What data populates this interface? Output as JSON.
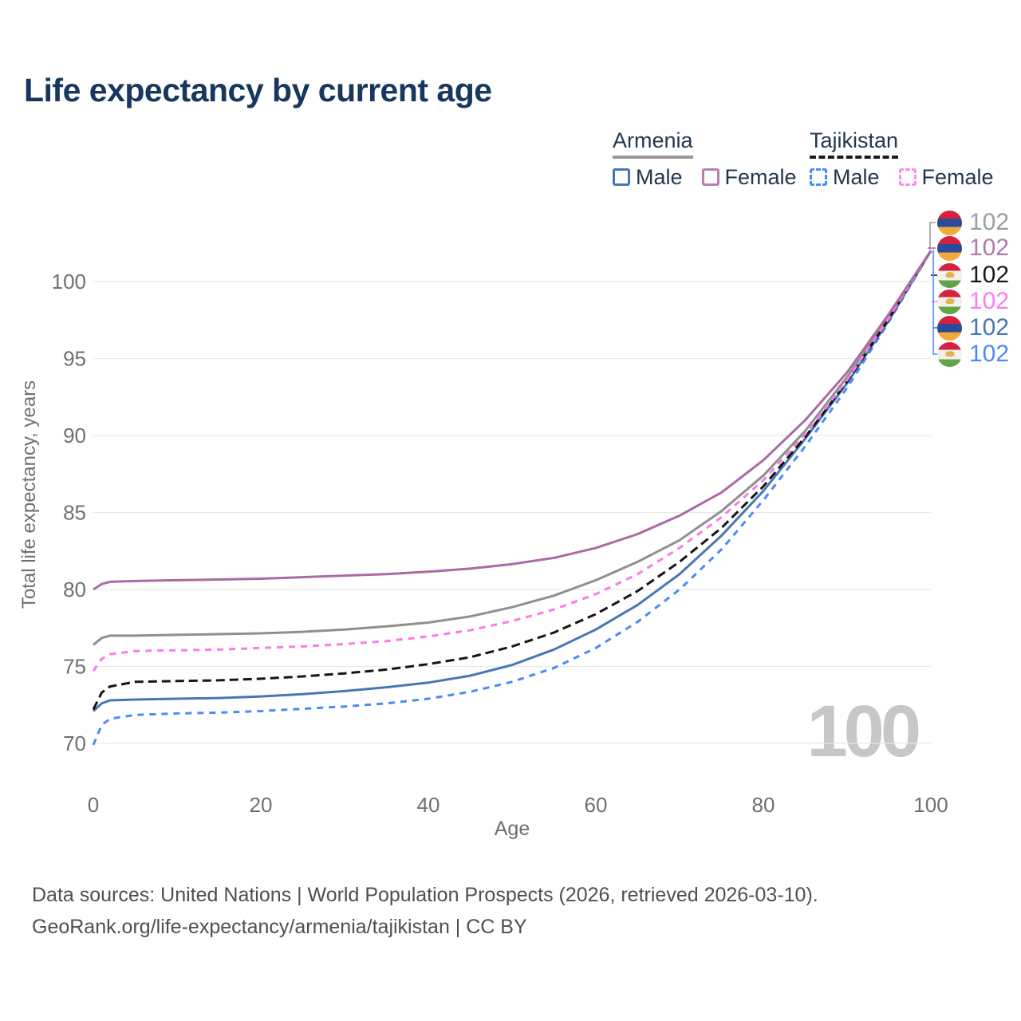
{
  "title": "Life expectancy by current age",
  "legend": {
    "groups": [
      {
        "label": "Armenia",
        "line_style": "solid",
        "line_color": "#999999",
        "items": [
          {
            "label": "Male",
            "box_color": "#4677b4",
            "dashed": false
          },
          {
            "label": "Female",
            "box_color": "#b87fb3",
            "dashed": false
          }
        ]
      },
      {
        "label": "Tajikistan",
        "line_style": "dashed",
        "line_color": "#1b1b1b",
        "items": [
          {
            "label": "Male",
            "box_color": "#4a8cf7",
            "dashed": true
          },
          {
            "label": "Female",
            "box_color": "#fc8cf0",
            "dashed": true
          }
        ]
      }
    ]
  },
  "chart_data": {
    "type": "line",
    "title": "Life expectancy by current age",
    "xlabel": "Age",
    "ylabel": "Total life expectancy, years",
    "x_ticks": [
      0,
      20,
      40,
      60,
      80,
      100
    ],
    "y_ticks": [
      70,
      75,
      80,
      85,
      90,
      95,
      100
    ],
    "xlim": [
      0,
      100
    ],
    "ylim": [
      69.5,
      103
    ],
    "grid": "horizontal",
    "legend_position": "top-right",
    "series": [
      {
        "id": "tajikistan-male",
        "name": "Tajikistan Male",
        "color": "#4a8cf7",
        "dash": "8 7",
        "points": [
          [
            0,
            69.9
          ],
          [
            1,
            71.2
          ],
          [
            2,
            71.6
          ],
          [
            5,
            71.85
          ],
          [
            10,
            71.95
          ],
          [
            15,
            72.0
          ],
          [
            20,
            72.1
          ],
          [
            25,
            72.25
          ],
          [
            30,
            72.4
          ],
          [
            35,
            72.6
          ],
          [
            40,
            72.9
          ],
          [
            45,
            73.35
          ],
          [
            50,
            74.0
          ],
          [
            55,
            74.9
          ],
          [
            60,
            76.2
          ],
          [
            65,
            77.9
          ],
          [
            70,
            80.0
          ],
          [
            75,
            82.6
          ],
          [
            80,
            85.8
          ],
          [
            85,
            89.3
          ],
          [
            90,
            93.1
          ],
          [
            95,
            97.4
          ],
          [
            100,
            102
          ]
        ]
      },
      {
        "id": "armenia-male",
        "name": "Armenia Male",
        "color": "#4677b4",
        "dash": null,
        "points": [
          [
            0,
            72.1
          ],
          [
            1,
            72.6
          ],
          [
            2,
            72.8
          ],
          [
            5,
            72.85
          ],
          [
            10,
            72.9
          ],
          [
            15,
            72.95
          ],
          [
            20,
            73.05
          ],
          [
            25,
            73.2
          ],
          [
            30,
            73.4
          ],
          [
            35,
            73.65
          ],
          [
            40,
            73.95
          ],
          [
            45,
            74.4
          ],
          [
            50,
            75.1
          ],
          [
            55,
            76.1
          ],
          [
            60,
            77.4
          ],
          [
            65,
            79.0
          ],
          [
            70,
            81.0
          ],
          [
            75,
            83.5
          ],
          [
            80,
            86.4
          ],
          [
            85,
            89.8
          ],
          [
            90,
            93.4
          ],
          [
            95,
            97.5
          ],
          [
            100,
            102
          ]
        ]
      },
      {
        "id": "armenia-both",
        "name": "Armenia",
        "color": "#8f8f8f",
        "dash": null,
        "points": [
          [
            0,
            76.4
          ],
          [
            1,
            76.85
          ],
          [
            2,
            77.0
          ],
          [
            5,
            77.0
          ],
          [
            10,
            77.05
          ],
          [
            15,
            77.1
          ],
          [
            20,
            77.15
          ],
          [
            25,
            77.25
          ],
          [
            30,
            77.4
          ],
          [
            35,
            77.6
          ],
          [
            40,
            77.85
          ],
          [
            45,
            78.25
          ],
          [
            50,
            78.85
          ],
          [
            55,
            79.6
          ],
          [
            60,
            80.6
          ],
          [
            65,
            81.8
          ],
          [
            70,
            83.2
          ],
          [
            75,
            85.1
          ],
          [
            80,
            87.4
          ],
          [
            85,
            90.3
          ],
          [
            90,
            93.8
          ],
          [
            95,
            97.7
          ],
          [
            100,
            102
          ]
        ]
      },
      {
        "id": "tajikistan-both",
        "name": "Tajikistan",
        "color": "#151515",
        "dash": "11 6",
        "points": [
          [
            0,
            72.2
          ],
          [
            1,
            73.3
          ],
          [
            2,
            73.7
          ],
          [
            5,
            74.0
          ],
          [
            10,
            74.05
          ],
          [
            15,
            74.1
          ],
          [
            20,
            74.2
          ],
          [
            25,
            74.35
          ],
          [
            30,
            74.55
          ],
          [
            35,
            74.8
          ],
          [
            40,
            75.15
          ],
          [
            45,
            75.6
          ],
          [
            50,
            76.3
          ],
          [
            55,
            77.2
          ],
          [
            60,
            78.4
          ],
          [
            65,
            79.9
          ],
          [
            70,
            81.8
          ],
          [
            75,
            84.0
          ],
          [
            80,
            86.7
          ],
          [
            85,
            89.9
          ],
          [
            90,
            93.5
          ],
          [
            95,
            97.6
          ],
          [
            100,
            102
          ]
        ]
      },
      {
        "id": "tajikistan-female",
        "name": "Tajikistan Female",
        "color": "#fa7be6",
        "dash": "8 7",
        "points": [
          [
            0,
            74.7
          ],
          [
            1,
            75.5
          ],
          [
            2,
            75.8
          ],
          [
            5,
            76.0
          ],
          [
            10,
            76.05
          ],
          [
            15,
            76.1
          ],
          [
            20,
            76.2
          ],
          [
            25,
            76.3
          ],
          [
            30,
            76.45
          ],
          [
            35,
            76.65
          ],
          [
            40,
            76.95
          ],
          [
            45,
            77.35
          ],
          [
            50,
            77.95
          ],
          [
            55,
            78.7
          ],
          [
            60,
            79.7
          ],
          [
            65,
            81.0
          ],
          [
            70,
            82.7
          ],
          [
            75,
            84.7
          ],
          [
            80,
            87.1
          ],
          [
            85,
            90.1
          ],
          [
            90,
            93.6
          ],
          [
            95,
            97.65
          ],
          [
            100,
            102
          ]
        ]
      },
      {
        "id": "armenia-female",
        "name": "Armenia Female",
        "color": "#aa6aa5",
        "dash": null,
        "points": [
          [
            0,
            80.0
          ],
          [
            1,
            80.35
          ],
          [
            2,
            80.5
          ],
          [
            5,
            80.55
          ],
          [
            10,
            80.6
          ],
          [
            15,
            80.65
          ],
          [
            20,
            80.7
          ],
          [
            25,
            80.8
          ],
          [
            30,
            80.9
          ],
          [
            35,
            81.0
          ],
          [
            40,
            81.15
          ],
          [
            45,
            81.35
          ],
          [
            50,
            81.65
          ],
          [
            55,
            82.05
          ],
          [
            60,
            82.7
          ],
          [
            65,
            83.6
          ],
          [
            70,
            84.8
          ],
          [
            75,
            86.3
          ],
          [
            80,
            88.4
          ],
          [
            85,
            91.0
          ],
          [
            90,
            94.1
          ],
          [
            95,
            97.9
          ],
          [
            100,
            102
          ]
        ]
      }
    ]
  },
  "end_labels": [
    {
      "flag": "armenia",
      "value": "102",
      "color": "#9e9e9e",
      "series": "Armenia"
    },
    {
      "flag": "armenia",
      "value": "102",
      "color": "#b278ac",
      "series": "Armenia Female"
    },
    {
      "flag": "tajikistan",
      "value": "102",
      "color": "#1a1a1a",
      "series": "Tajikistan"
    },
    {
      "flag": "tajikistan",
      "value": "102",
      "color": "#fc7cf0",
      "series": "Tajikistan Female"
    },
    {
      "flag": "armenia",
      "value": "102",
      "color": "#4677b4",
      "series": "Armenia Male"
    },
    {
      "flag": "tajikistan",
      "value": "102",
      "color": "#4a8cf7",
      "series": "Tajikistan Male"
    }
  ],
  "watermark": "100",
  "flag_colors": {
    "armenia": [
      "#d6213e",
      "#2a4b9b",
      "#f2a93b"
    ],
    "tajikistan": [
      "#d6213e",
      "#f3f1ee",
      "#65a348"
    ]
  },
  "footer": {
    "line1": "Data sources: United Nations | World Population Prospects (2026, retrieved 2026-03-10).",
    "line2": "GeoRank.org/life-expectancy/armenia/tajikistan | CC BY"
  }
}
